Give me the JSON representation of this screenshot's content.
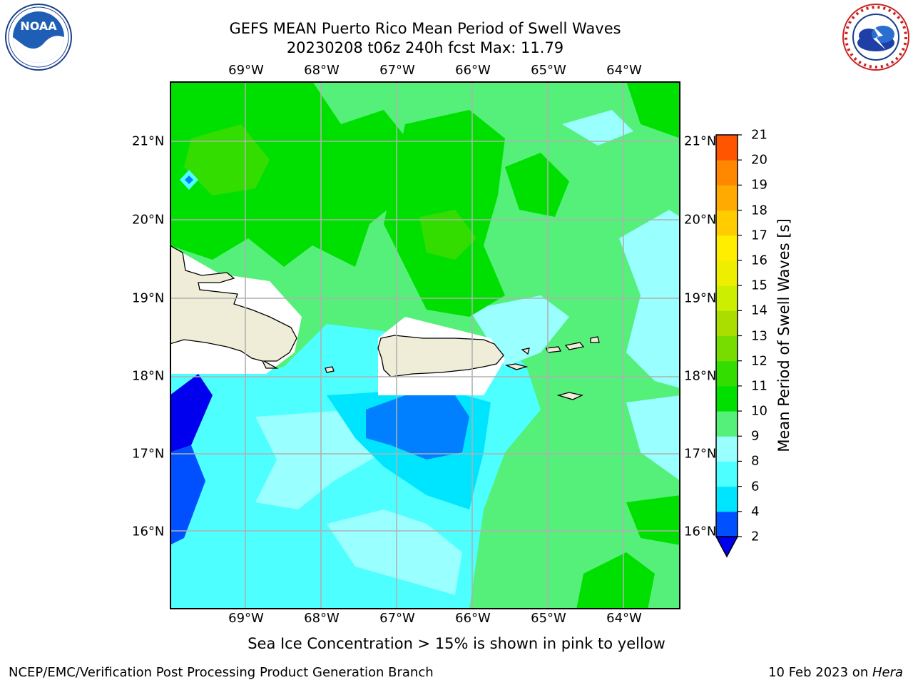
{
  "title": {
    "line1": "GEFS MEAN Puerto Rico Mean Period of Swell Waves",
    "line2": "20230208 t06z 240h fcst   Max: 11.79"
  },
  "logos": {
    "left": "noaa-logo",
    "right": "national-weather-service-logo"
  },
  "map": {
    "lon_labels": [
      "69°W",
      "68°W",
      "67°W",
      "66°W",
      "65°W",
      "64°W"
    ],
    "lat_labels": [
      "21°N",
      "20°N",
      "19°N",
      "18°N",
      "17°N",
      "16°N"
    ],
    "lon_range": [
      -70.0,
      -63.25
    ],
    "lat_range": [
      15.0,
      21.75
    ]
  },
  "colorbar": {
    "label": "Mean Period of Swell Waves [s]",
    "ticks": [
      "2",
      "4",
      "6",
      "8",
      "9",
      "10",
      "11",
      "12",
      "13",
      "14",
      "15",
      "16",
      "17",
      "18",
      "19",
      "20",
      "21"
    ],
    "colors": [
      "#0050ff",
      "#00e5ff",
      "#4dffff",
      "#99ffff",
      "#55f07a",
      "#00e000",
      "#33dd00",
      "#77dd00",
      "#aadd00",
      "#ccee00",
      "#eeee00",
      "#ffee00",
      "#ffcc00",
      "#ffaa00",
      "#ff8800",
      "#ff5500",
      "#ff2200"
    ],
    "under_color": "#0000ee"
  },
  "caption": "Sea Ice Concentration > 15% is shown in pink to yellow",
  "footer": {
    "left": "NCEP/EMC/Verification Post Processing Product Generation Branch",
    "right_date": "10 Feb 2023 on ",
    "right_host": "Hera"
  }
}
